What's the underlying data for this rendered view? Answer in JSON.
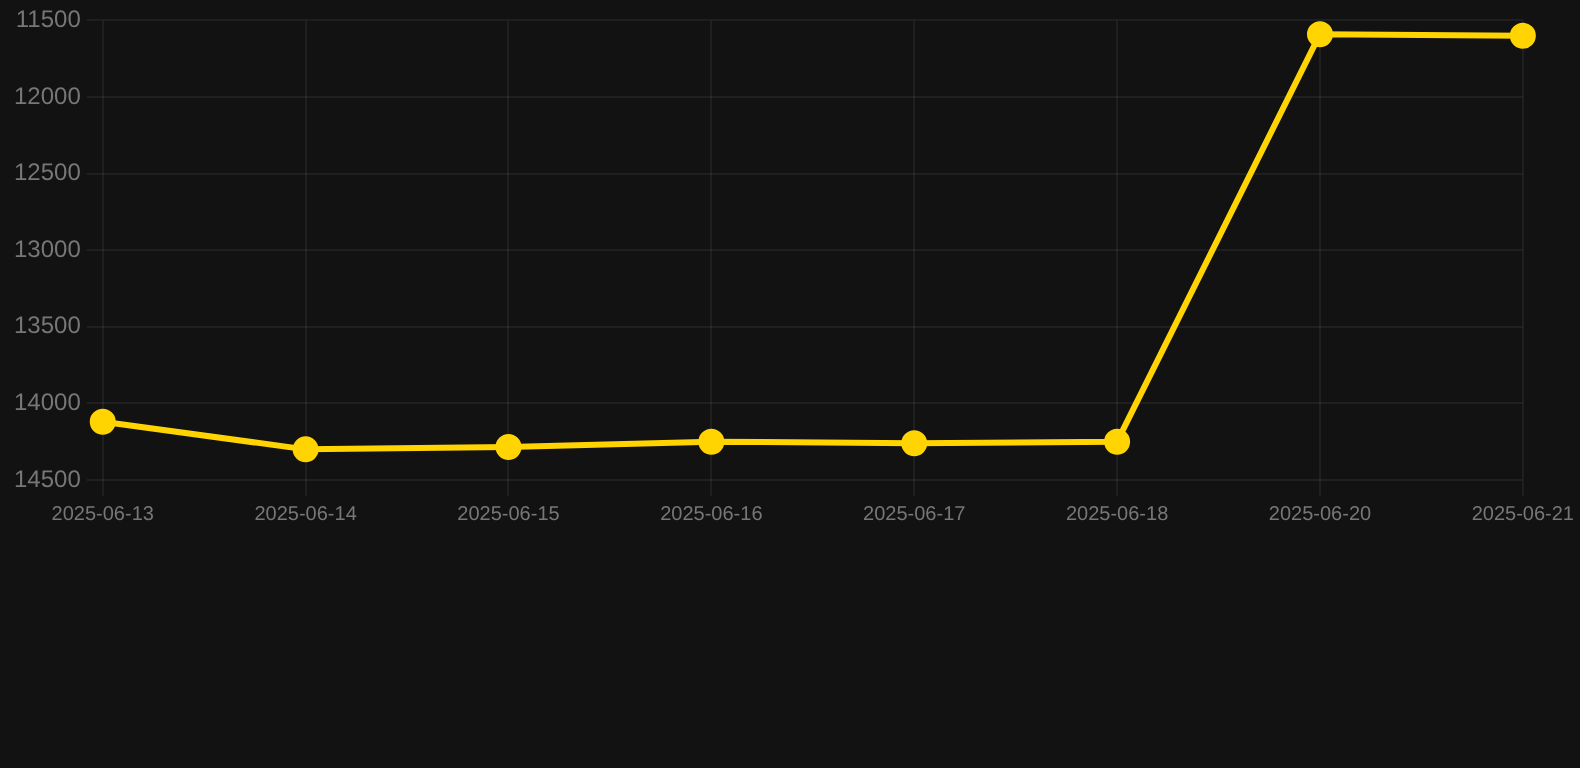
{
  "chart_data": {
    "type": "line",
    "categories": [
      "2025-06-13",
      "2025-06-14",
      "2025-06-15",
      "2025-06-16",
      "2025-06-17",
      "2025-06-18",
      "2025-06-20",
      "2025-06-21"
    ],
    "series": [
      {
        "color": "#ffd400",
        "values": [
          14120,
          14300,
          14285,
          14250,
          14260,
          14250,
          11590,
          11600
        ]
      }
    ],
    "ylim": [
      14500,
      11500
    ],
    "yticks": [
      11500,
      12000,
      12500,
      13000,
      13500,
      14000,
      14500
    ],
    "grid": true,
    "marker": "circle",
    "line_style": "solid"
  }
}
